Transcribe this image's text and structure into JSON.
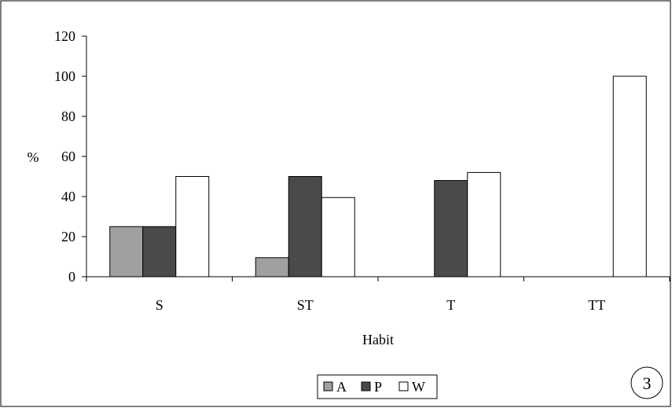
{
  "chart_data": {
    "type": "bar",
    "categories": [
      "S",
      "ST",
      "T",
      "TT"
    ],
    "series": [
      {
        "name": "A",
        "values": [
          25,
          9.5,
          0,
          0
        ],
        "color": "#a0a0a0"
      },
      {
        "name": "P",
        "values": [
          25,
          50,
          48,
          0
        ],
        "color": "#4a4a4a"
      },
      {
        "name": "W",
        "values": [
          50,
          39.5,
          52,
          100
        ],
        "color": "#ffffff"
      }
    ],
    "ylim": [
      0,
      120
    ],
    "yticks": [
      "0",
      "20",
      "40",
      "60",
      "80",
      "100",
      "120"
    ],
    "xlabel": "Habit",
    "ylabel": "%",
    "legend_position": "bottom-center",
    "grid": false
  },
  "panel_label": "3"
}
